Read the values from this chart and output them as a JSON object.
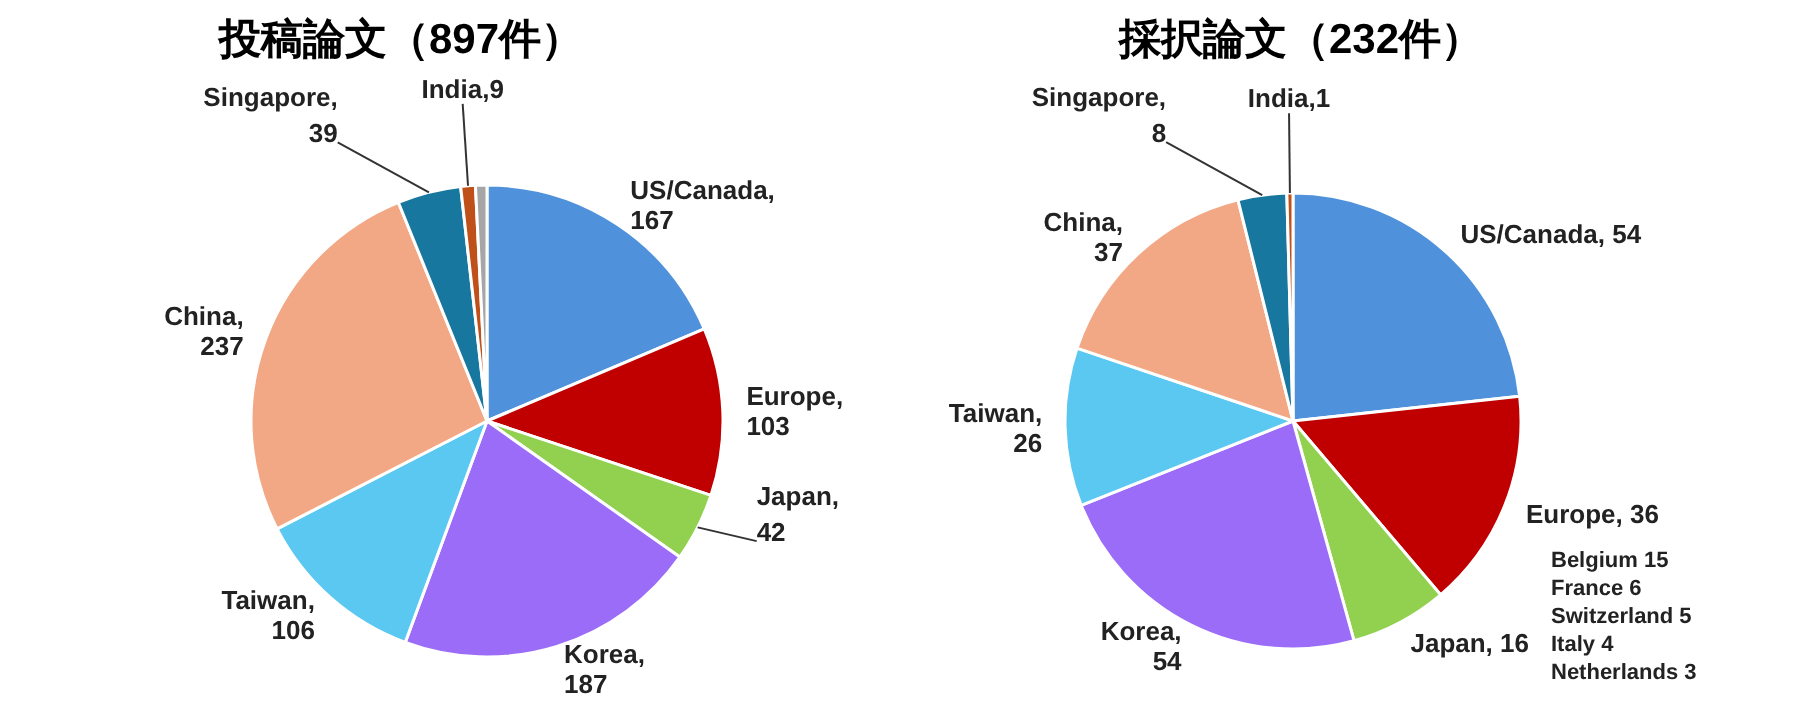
{
  "chart_data": [
    {
      "type": "pie",
      "title": "投稿論文（897件）",
      "categories": [
        "US/Canada",
        "Europe",
        "Japan",
        "Korea",
        "Taiwan",
        "China",
        "Singapore",
        "India",
        null
      ],
      "values": [
        167,
        103,
        42,
        187,
        106,
        237,
        39,
        9,
        7
      ],
      "colors": [
        "#4f92db",
        "#c00000",
        "#92d050",
        "#9b6cf7",
        "#5bc8f2",
        "#f2a884",
        "#17779f",
        "#c0501a",
        "#a6a6a6"
      ],
      "value_labels": [
        ",\n167",
        ",\n103",
        ",\n42",
        ",\n187",
        ",\n106",
        ",\n237",
        ",\n39",
        ",9",
        null
      ]
    },
    {
      "type": "pie",
      "title": "採択論文（232件）",
      "categories": [
        "US/Canada",
        "Europe",
        "Japan",
        "Korea",
        "Taiwan",
        "China",
        "Singapore",
        "India"
      ],
      "values": [
        54,
        36,
        16,
        54,
        26,
        37,
        8,
        1
      ],
      "colors": [
        "#4f92db",
        "#c00000",
        "#92d050",
        "#9b6cf7",
        "#5bc8f2",
        "#f2a884",
        "#17779f",
        "#c0501a"
      ],
      "value_labels": [
        ", 54",
        ", 36",
        ", 16",
        ",\n54",
        ",\n26",
        ",\n37",
        ",\n8",
        ",1"
      ],
      "annotations": [
        "Belgium 15",
        "France 6",
        "Switzerland 5",
        "Italy 4",
        "Netherlands 3"
      ]
    }
  ]
}
